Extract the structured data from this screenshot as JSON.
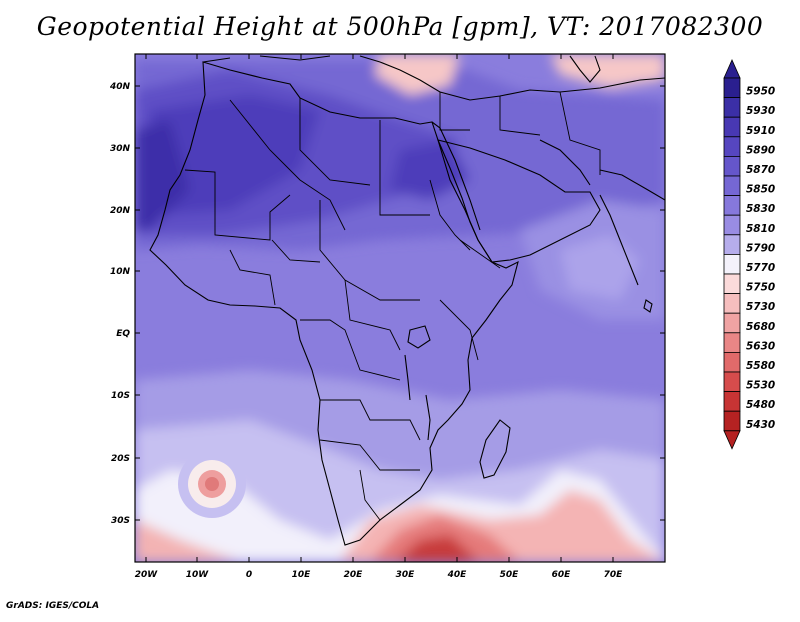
{
  "title": "Geopotential Height at 500hPa [gpm], VT: 2017082300",
  "footer": "GrADS: IGES/COLA",
  "map": {
    "lat_labels": [
      "40N",
      "30N",
      "20N",
      "10N",
      "EQ",
      "10S",
      "20S",
      "30S"
    ],
    "lon_labels": [
      "20W",
      "10W",
      "0",
      "10E",
      "20E",
      "30E",
      "40E",
      "50E",
      "60E",
      "70E"
    ],
    "lat_range": [
      -36,
      44
    ],
    "lon_range": [
      -22,
      80
    ]
  },
  "colorbar": {
    "levels": [
      "5950",
      "5930",
      "5910",
      "5890",
      "5870",
      "5850",
      "5830",
      "5810",
      "5790",
      "5770",
      "5750",
      "5730",
      "5680",
      "5630",
      "5580",
      "5530",
      "5480",
      "5430"
    ],
    "colors": [
      "#2a1f8f",
      "#3b2fa6",
      "#4838b3",
      "#5646c0",
      "#6556cb",
      "#7567d4",
      "#8678dc",
      "#998ce3",
      "#b6adec",
      "#f4f2fb",
      "#fbdada",
      "#f6bebe",
      "#f0a3a3",
      "#e98686",
      "#e16a6a",
      "#d64c4c",
      "#c73434",
      "#b52222"
    ]
  }
}
